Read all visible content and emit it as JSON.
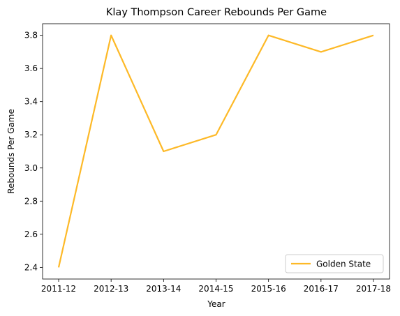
{
  "chart_data": {
    "type": "line",
    "title": "Klay Thompson Career Rebounds Per Game",
    "xlabel": "Year",
    "ylabel": "Rebounds Per Game",
    "categories": [
      "2011-12",
      "2012-13",
      "2013-14",
      "2014-15",
      "2015-16",
      "2016-17",
      "2017-18"
    ],
    "series": [
      {
        "name": "Golden State",
        "values": [
          2.4,
          3.8,
          3.1,
          3.2,
          3.8,
          3.7,
          3.8
        ],
        "color": "#FDB927"
      }
    ],
    "ylim": [
      2.33,
      3.87
    ],
    "yticks": [
      2.4,
      2.6,
      2.8,
      3.0,
      3.2,
      3.4,
      3.6,
      3.8
    ],
    "ytick_labels": [
      "2.4",
      "2.6",
      "2.8",
      "3.0",
      "3.2",
      "3.4",
      "3.6",
      "3.8"
    ],
    "grid": false,
    "legend_position": "lower-right"
  }
}
